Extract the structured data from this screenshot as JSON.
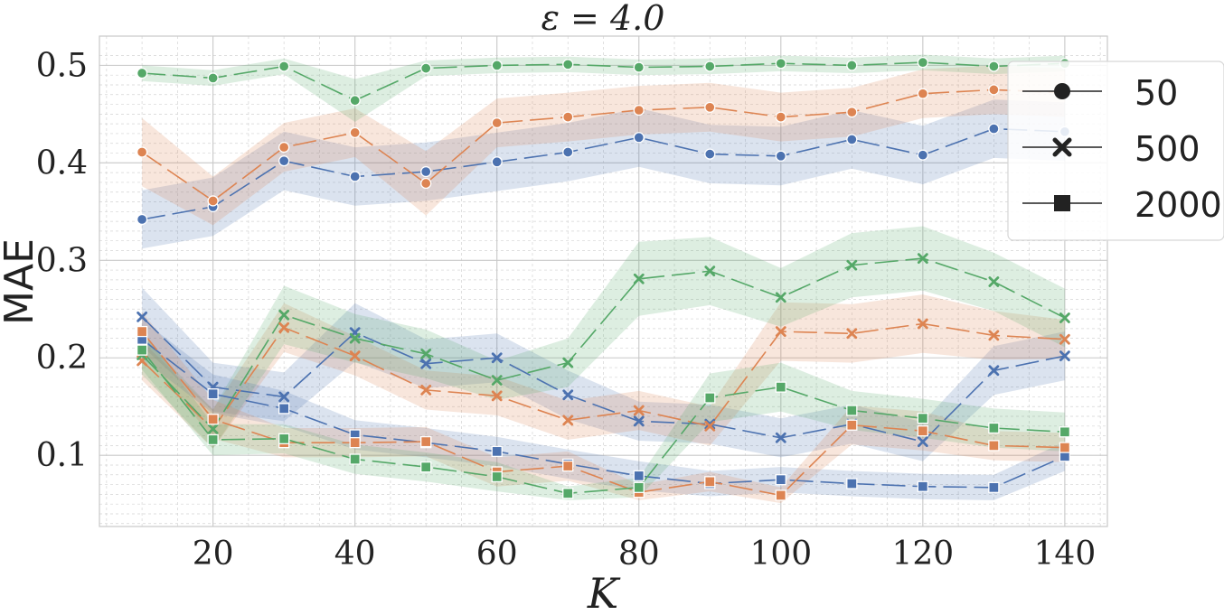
{
  "chart_data": {
    "type": "line",
    "title": "ε = 4.0",
    "xlabel": "K",
    "ylabel": "MAE",
    "xlim": [
      4,
      146
    ],
    "ylim": [
      0.027,
      0.53
    ],
    "x_ticks": [
      20,
      40,
      60,
      80,
      100,
      120,
      140
    ],
    "y_ticks": [
      0.1,
      0.2,
      0.3,
      0.4,
      0.5
    ],
    "grid": true,
    "legend_position": "upper-right",
    "legend": [
      {
        "label": "50",
        "marker": "circle"
      },
      {
        "label": "500",
        "marker": "x"
      },
      {
        "label": "2000",
        "marker": "square"
      }
    ],
    "colors": {
      "blue": "#4c72b0",
      "orange": "#dd8452",
      "green": "#55a868",
      "grid": "#d4d4d4",
      "axis": "#c8c8c8"
    },
    "x": [
      10,
      20,
      30,
      40,
      50,
      60,
      70,
      80,
      90,
      100,
      110,
      120,
      130,
      140
    ],
    "series": [
      {
        "name": "blue-50",
        "color": "blue",
        "marker": "circle",
        "values": [
          0.342,
          0.355,
          0.402,
          0.386,
          0.391,
          0.401,
          0.411,
          0.426,
          0.409,
          0.407,
          0.424,
          0.408,
          0.435,
          0.432
        ],
        "ci": [
          [
            0.312,
            0.372
          ],
          [
            0.325,
            0.385
          ],
          [
            0.372,
            0.432
          ],
          [
            0.356,
            0.416
          ],
          [
            0.361,
            0.421
          ],
          [
            0.371,
            0.431
          ],
          [
            0.381,
            0.441
          ],
          [
            0.396,
            0.456
          ],
          [
            0.379,
            0.439
          ],
          [
            0.377,
            0.437
          ],
          [
            0.394,
            0.454
          ],
          [
            0.378,
            0.438
          ],
          [
            0.405,
            0.465
          ],
          [
            0.402,
            0.462
          ]
        ]
      },
      {
        "name": "orange-50",
        "color": "orange",
        "marker": "circle",
        "values": [
          0.411,
          0.361,
          0.416,
          0.431,
          0.379,
          0.441,
          0.447,
          0.454,
          0.457,
          0.447,
          0.452,
          0.471,
          0.475,
          0.472
        ],
        "ci": [
          [
            0.376,
            0.446
          ],
          [
            0.336,
            0.386
          ],
          [
            0.391,
            0.441
          ],
          [
            0.406,
            0.456
          ],
          [
            0.346,
            0.412
          ],
          [
            0.416,
            0.466
          ],
          [
            0.422,
            0.472
          ],
          [
            0.429,
            0.479
          ],
          [
            0.432,
            0.482
          ],
          [
            0.422,
            0.472
          ],
          [
            0.427,
            0.477
          ],
          [
            0.446,
            0.496
          ],
          [
            0.45,
            0.5
          ],
          [
            0.447,
            0.497
          ]
        ]
      },
      {
        "name": "green-50",
        "color": "green",
        "marker": "circle",
        "values": [
          0.492,
          0.487,
          0.499,
          0.464,
          0.497,
          0.5,
          0.501,
          0.498,
          0.499,
          0.502,
          0.5,
          0.503,
          0.499,
          0.502
        ],
        "ci": [
          [
            0.484,
            0.5
          ],
          [
            0.479,
            0.495
          ],
          [
            0.491,
            0.507
          ],
          [
            0.442,
            0.486
          ],
          [
            0.489,
            0.505
          ],
          [
            0.492,
            0.508
          ],
          [
            0.493,
            0.509
          ],
          [
            0.49,
            0.506
          ],
          [
            0.491,
            0.507
          ],
          [
            0.494,
            0.51
          ],
          [
            0.492,
            0.508
          ],
          [
            0.495,
            0.511
          ],
          [
            0.491,
            0.507
          ],
          [
            0.494,
            0.51
          ]
        ]
      },
      {
        "name": "blue-500",
        "color": "blue",
        "marker": "x",
        "values": [
          0.242,
          0.17,
          0.16,
          0.226,
          0.194,
          0.2,
          0.162,
          0.135,
          0.132,
          0.118,
          0.132,
          0.114,
          0.187,
          0.202
        ],
        "ci": [
          [
            0.212,
            0.272
          ],
          [
            0.145,
            0.195
          ],
          [
            0.135,
            0.185
          ],
          [
            0.196,
            0.256
          ],
          [
            0.169,
            0.219
          ],
          [
            0.175,
            0.225
          ],
          [
            0.137,
            0.187
          ],
          [
            0.115,
            0.155
          ],
          [
            0.112,
            0.152
          ],
          [
            0.098,
            0.138
          ],
          [
            0.112,
            0.152
          ],
          [
            0.094,
            0.134
          ],
          [
            0.162,
            0.212
          ],
          [
            0.177,
            0.227
          ]
        ]
      },
      {
        "name": "orange-500",
        "color": "orange",
        "marker": "x",
        "values": [
          0.197,
          0.127,
          0.231,
          0.202,
          0.167,
          0.161,
          0.136,
          0.146,
          0.13,
          0.227,
          0.225,
          0.235,
          0.223,
          0.219
        ],
        "ci": [
          [
            0.177,
            0.217
          ],
          [
            0.107,
            0.147
          ],
          [
            0.206,
            0.256
          ],
          [
            0.182,
            0.222
          ],
          [
            0.147,
            0.187
          ],
          [
            0.141,
            0.181
          ],
          [
            0.116,
            0.156
          ],
          [
            0.126,
            0.166
          ],
          [
            0.11,
            0.15
          ],
          [
            0.197,
            0.257
          ],
          [
            0.195,
            0.255
          ],
          [
            0.205,
            0.265
          ],
          [
            0.198,
            0.248
          ],
          [
            0.199,
            0.239
          ]
        ]
      },
      {
        "name": "green-500",
        "color": "green",
        "marker": "x",
        "values": [
          0.203,
          0.127,
          0.244,
          0.22,
          0.204,
          0.177,
          0.195,
          0.281,
          0.289,
          0.262,
          0.295,
          0.302,
          0.278,
          0.241
        ],
        "ci": [
          [
            0.183,
            0.223
          ],
          [
            0.107,
            0.147
          ],
          [
            0.214,
            0.274
          ],
          [
            0.195,
            0.245
          ],
          [
            0.179,
            0.229
          ],
          [
            0.157,
            0.197
          ],
          [
            0.17,
            0.22
          ],
          [
            0.243,
            0.319
          ],
          [
            0.254,
            0.324
          ],
          [
            0.232,
            0.292
          ],
          [
            0.262,
            0.328
          ],
          [
            0.269,
            0.335
          ],
          [
            0.248,
            0.308
          ],
          [
            0.211,
            0.271
          ]
        ]
      },
      {
        "name": "blue-2000",
        "color": "blue",
        "marker": "square",
        "values": [
          0.219,
          0.163,
          0.148,
          0.121,
          0.113,
          0.104,
          0.091,
          0.079,
          0.071,
          0.075,
          0.071,
          0.068,
          0.067,
          0.099
        ],
        "ci": [
          [
            0.199,
            0.239
          ],
          [
            0.143,
            0.183
          ],
          [
            0.13,
            0.166
          ],
          [
            0.106,
            0.136
          ],
          [
            0.098,
            0.128
          ],
          [
            0.089,
            0.119
          ],
          [
            0.076,
            0.106
          ],
          [
            0.064,
            0.094
          ],
          [
            0.058,
            0.084
          ],
          [
            0.062,
            0.088
          ],
          [
            0.058,
            0.084
          ],
          [
            0.055,
            0.081
          ],
          [
            0.054,
            0.08
          ],
          [
            0.084,
            0.114
          ]
        ]
      },
      {
        "name": "orange-2000",
        "color": "orange",
        "marker": "square",
        "values": [
          0.227,
          0.137,
          0.113,
          0.113,
          0.114,
          0.083,
          0.089,
          0.062,
          0.073,
          0.059,
          0.131,
          0.125,
          0.11,
          0.108
        ],
        "ci": [
          [
            0.207,
            0.247
          ],
          [
            0.117,
            0.157
          ],
          [
            0.098,
            0.128
          ],
          [
            0.098,
            0.128
          ],
          [
            0.099,
            0.129
          ],
          [
            0.068,
            0.098
          ],
          [
            0.074,
            0.104
          ],
          [
            0.054,
            0.07
          ],
          [
            0.063,
            0.083
          ],
          [
            0.051,
            0.067
          ],
          [
            0.111,
            0.151
          ],
          [
            0.105,
            0.145
          ],
          [
            0.095,
            0.125
          ],
          [
            0.093,
            0.123
          ]
        ]
      },
      {
        "name": "green-2000",
        "color": "green",
        "marker": "square",
        "values": [
          0.208,
          0.116,
          0.117,
          0.096,
          0.088,
          0.078,
          0.061,
          0.067,
          0.159,
          0.17,
          0.146,
          0.138,
          0.128,
          0.124
        ],
        "ci": [
          [
            0.188,
            0.228
          ],
          [
            0.1,
            0.132
          ],
          [
            0.102,
            0.132
          ],
          [
            0.081,
            0.111
          ],
          [
            0.073,
            0.103
          ],
          [
            0.063,
            0.093
          ],
          [
            0.054,
            0.068
          ],
          [
            0.057,
            0.077
          ],
          [
            0.134,
            0.184
          ],
          [
            0.145,
            0.195
          ],
          [
            0.126,
            0.166
          ],
          [
            0.118,
            0.158
          ],
          [
            0.108,
            0.148
          ],
          [
            0.104,
            0.144
          ]
        ]
      }
    ]
  }
}
